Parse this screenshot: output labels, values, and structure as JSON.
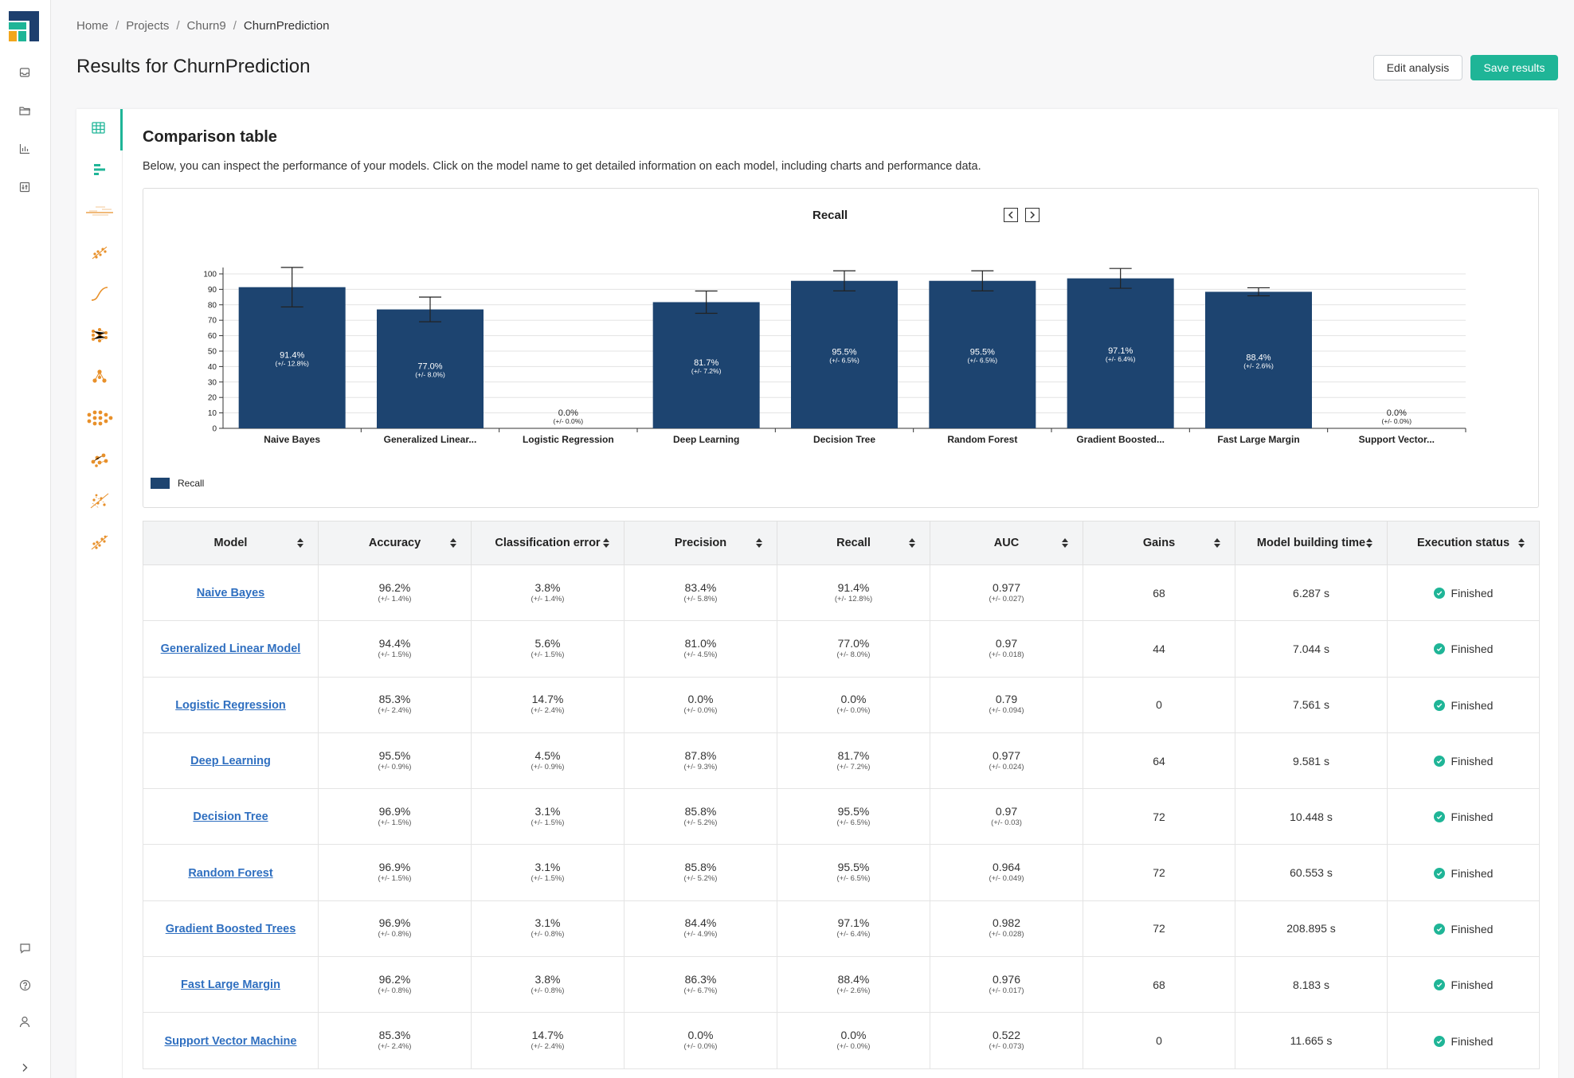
{
  "breadcrumb": [
    "Home",
    "Projects",
    "Churn9",
    "ChurnPrediction"
  ],
  "page_title": "Results for ChurnPrediction",
  "actions": {
    "edit": "Edit analysis",
    "save": "Save results"
  },
  "section": {
    "title": "Comparison table",
    "description": "Below, you can inspect the performance of your models. Click on the model name to get detailed information on each model, including charts and performance data."
  },
  "colors": {
    "accent": "#1fb597",
    "bar": "#1d4470",
    "link": "#2f6fc0",
    "icon_orange": "#e8902a"
  },
  "rail_icons": [
    "inbox-icon",
    "folder-icon",
    "bar-chart-icon",
    "sliders-icon",
    "feedback-icon",
    "help-icon",
    "user-icon",
    "expand-icon"
  ],
  "vertical_tabs": [
    "table-icon",
    "horizontal-bars-icon",
    "lift-chart-icon",
    "scatter-icon",
    "curve-icon",
    "network-icon",
    "tree-icon",
    "neural-net-icon",
    "cluster-icon",
    "trees-icon",
    "scatter-fit-icon"
  ],
  "chart_data": {
    "type": "bar",
    "title": "Recall",
    "categories": [
      "Naive Bayes",
      "Generalized Linear...",
      "Logistic Regression",
      "Deep Learning",
      "Decision Tree",
      "Random Forest",
      "Gradient Boosted...",
      "Fast Large Margin",
      "Support Vector..."
    ],
    "series": [
      {
        "name": "Recall",
        "values": [
          91.4,
          77.0,
          0.0,
          81.7,
          95.5,
          95.5,
          97.1,
          88.4,
          0.0
        ],
        "errors": [
          12.8,
          8.0,
          0.0,
          7.2,
          6.5,
          6.5,
          6.4,
          2.6,
          0.0
        ],
        "labels": [
          "91.4%",
          "77.0%",
          "0.0%",
          "81.7%",
          "95.5%",
          "95.5%",
          "97.1%",
          "88.4%",
          "0.0%"
        ],
        "error_labels": [
          "(+/- 12.8%)",
          "(+/- 8.0%)",
          "(+/- 0.0%)",
          "(+/- 7.2%)",
          "(+/- 6.5%)",
          "(+/- 6.5%)",
          "(+/- 6.4%)",
          "(+/- 2.6%)",
          "(+/- 0.0%)"
        ]
      }
    ],
    "yticks": [
      "0",
      "10",
      "20",
      "30",
      "40",
      "50",
      "60",
      "70",
      "80",
      "90",
      "100"
    ],
    "ylim": [
      0,
      100
    ],
    "legend": "bottom-left",
    "grid": true
  },
  "table": {
    "headers": [
      "Model",
      "Accuracy",
      "Classification error",
      "Precision",
      "Recall",
      "AUC",
      "Gains",
      "Model building time",
      "Execution status"
    ],
    "rows": [
      {
        "model": "Naive Bayes",
        "accuracy": "96.2%",
        "accuracy_dev": "(+/- 1.4%)",
        "error": "3.8%",
        "error_dev": "(+/- 1.4%)",
        "precision": "83.4%",
        "precision_dev": "(+/- 5.8%)",
        "recall": "91.4%",
        "recall_dev": "(+/- 12.8%)",
        "auc": "0.977",
        "auc_dev": "(+/- 0.027)",
        "gains": "68",
        "time": "6.287 s",
        "status": "Finished"
      },
      {
        "model": "Generalized Linear Model",
        "accuracy": "94.4%",
        "accuracy_dev": "(+/- 1.5%)",
        "error": "5.6%",
        "error_dev": "(+/- 1.5%)",
        "precision": "81.0%",
        "precision_dev": "(+/- 4.5%)",
        "recall": "77.0%",
        "recall_dev": "(+/- 8.0%)",
        "auc": "0.97",
        "auc_dev": "(+/- 0.018)",
        "gains": "44",
        "time": "7.044 s",
        "status": "Finished"
      },
      {
        "model": "Logistic Regression",
        "accuracy": "85.3%",
        "accuracy_dev": "(+/- 2.4%)",
        "error": "14.7%",
        "error_dev": "(+/- 2.4%)",
        "precision": "0.0%",
        "precision_dev": "(+/- 0.0%)",
        "recall": "0.0%",
        "recall_dev": "(+/- 0.0%)",
        "auc": "0.79",
        "auc_dev": "(+/- 0.094)",
        "gains": "0",
        "time": "7.561 s",
        "status": "Finished"
      },
      {
        "model": "Deep Learning",
        "accuracy": "95.5%",
        "accuracy_dev": "(+/- 0.9%)",
        "error": "4.5%",
        "error_dev": "(+/- 0.9%)",
        "precision": "87.8%",
        "precision_dev": "(+/- 9.3%)",
        "recall": "81.7%",
        "recall_dev": "(+/- 7.2%)",
        "auc": "0.977",
        "auc_dev": "(+/- 0.024)",
        "gains": "64",
        "time": "9.581 s",
        "status": "Finished"
      },
      {
        "model": "Decision Tree",
        "accuracy": "96.9%",
        "accuracy_dev": "(+/- 1.5%)",
        "error": "3.1%",
        "error_dev": "(+/- 1.5%)",
        "precision": "85.8%",
        "precision_dev": "(+/- 5.2%)",
        "recall": "95.5%",
        "recall_dev": "(+/- 6.5%)",
        "auc": "0.97",
        "auc_dev": "(+/- 0.03)",
        "gains": "72",
        "time": "10.448 s",
        "status": "Finished"
      },
      {
        "model": "Random Forest",
        "accuracy": "96.9%",
        "accuracy_dev": "(+/- 1.5%)",
        "error": "3.1%",
        "error_dev": "(+/- 1.5%)",
        "precision": "85.8%",
        "precision_dev": "(+/- 5.2%)",
        "recall": "95.5%",
        "recall_dev": "(+/- 6.5%)",
        "auc": "0.964",
        "auc_dev": "(+/- 0.049)",
        "gains": "72",
        "time": "60.553 s",
        "status": "Finished"
      },
      {
        "model": "Gradient Boosted Trees",
        "accuracy": "96.9%",
        "accuracy_dev": "(+/- 0.8%)",
        "error": "3.1%",
        "error_dev": "(+/- 0.8%)",
        "precision": "84.4%",
        "precision_dev": "(+/- 4.9%)",
        "recall": "97.1%",
        "recall_dev": "(+/- 6.4%)",
        "auc": "0.982",
        "auc_dev": "(+/- 0.028)",
        "gains": "72",
        "time": "208.895 s",
        "status": "Finished"
      },
      {
        "model": "Fast Large Margin",
        "accuracy": "96.2%",
        "accuracy_dev": "(+/- 0.8%)",
        "error": "3.8%",
        "error_dev": "(+/- 0.8%)",
        "precision": "86.3%",
        "precision_dev": "(+/- 6.7%)",
        "recall": "88.4%",
        "recall_dev": "(+/- 2.6%)",
        "auc": "0.976",
        "auc_dev": "(+/- 0.017)",
        "gains": "68",
        "time": "8.183 s",
        "status": "Finished"
      },
      {
        "model": "Support Vector Machine",
        "accuracy": "85.3%",
        "accuracy_dev": "(+/- 2.4%)",
        "error": "14.7%",
        "error_dev": "(+/- 2.4%)",
        "precision": "0.0%",
        "precision_dev": "(+/- 0.0%)",
        "recall": "0.0%",
        "recall_dev": "(+/- 0.0%)",
        "auc": "0.522",
        "auc_dev": "(+/- 0.073)",
        "gains": "0",
        "time": "11.665 s",
        "status": "Finished"
      }
    ]
  }
}
